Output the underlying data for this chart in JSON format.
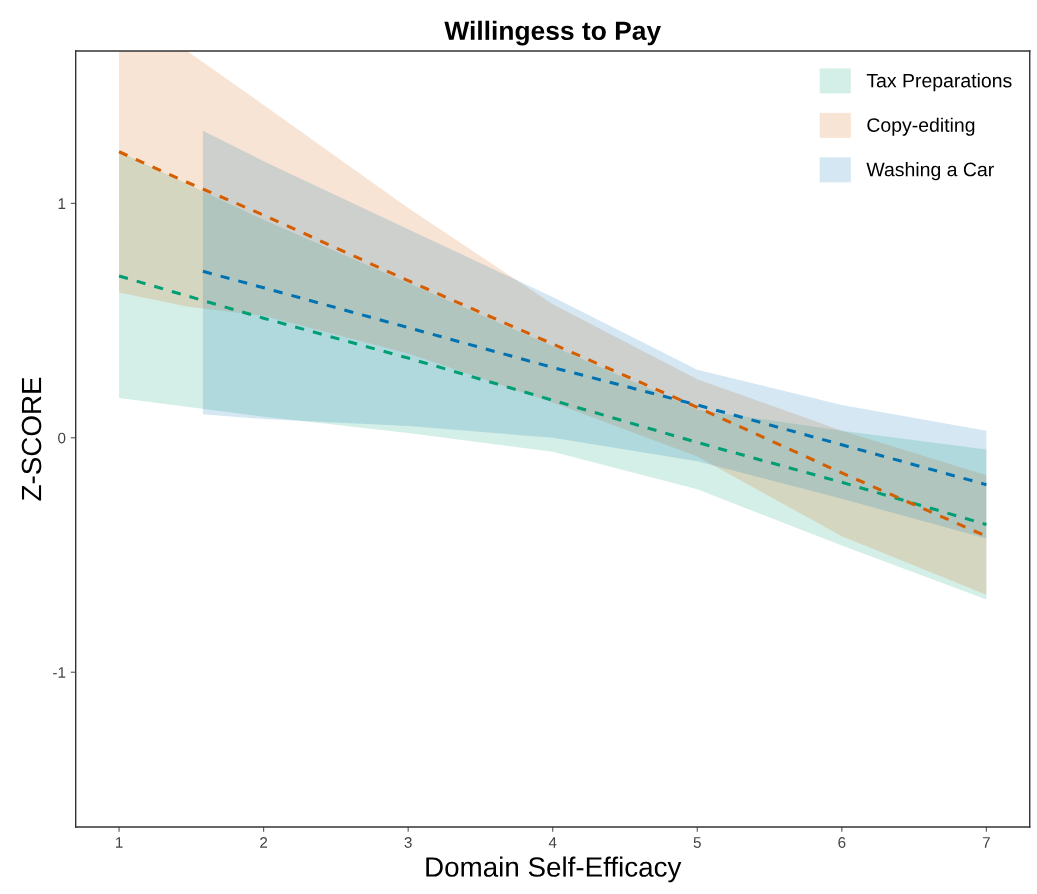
{
  "chart_data": {
    "type": "line",
    "title": "Willingess to Pay",
    "xlabel": "Domain Self-Efficacy",
    "ylabel": "Z-SCORE",
    "xlim": [
      0.7,
      7.3
    ],
    "xticks": [
      1,
      2,
      3,
      4,
      5,
      6,
      7
    ],
    "ylim": [
      -1.66,
      1.65
    ],
    "yticks": [
      -1,
      0,
      1
    ],
    "grid": false,
    "legend": "top right",
    "line_style": "dashed",
    "marker": "none",
    "series": [
      {
        "name": "Tax Preparations",
        "color": "#009e73",
        "x": [
          1,
          2,
          3,
          4,
          5,
          6,
          7
        ],
        "values": [
          0.69,
          0.51,
          0.34,
          0.16,
          -0.02,
          -0.19,
          -0.37
        ],
        "lower": [
          0.17,
          0.09,
          0.02,
          -0.06,
          -0.22,
          -0.46,
          -0.69
        ],
        "upper": [
          1.22,
          0.93,
          0.66,
          0.39,
          0.12,
          0.03,
          -0.05
        ]
      },
      {
        "name": "Copy-editing",
        "color": "#d55e00",
        "x": [
          1,
          1.47,
          2,
          3,
          4,
          5,
          6,
          7
        ],
        "values": [
          1.22,
          1.09,
          0.95,
          0.67,
          0.4,
          0.13,
          -0.15,
          -0.42
        ],
        "lower": [
          0.62,
          0.56,
          0.52,
          0.36,
          0.15,
          -0.08,
          -0.42,
          -0.67
        ],
        "upper": [
          1.65,
          1.65,
          1.42,
          0.98,
          0.57,
          0.25,
          0.03,
          -0.16
        ]
      },
      {
        "name": "Washing a Car",
        "color": "#0072b2",
        "x": [
          1.58,
          2,
          3,
          4,
          5,
          6,
          7
        ],
        "values": [
          0.71,
          0.64,
          0.47,
          0.3,
          0.14,
          -0.03,
          -0.2
        ],
        "lower": [
          0.1,
          0.08,
          0.05,
          0.0,
          -0.1,
          -0.26,
          -0.43
        ],
        "upper": [
          1.31,
          1.18,
          0.89,
          0.6,
          0.29,
          0.14,
          0.03
        ]
      }
    ]
  }
}
